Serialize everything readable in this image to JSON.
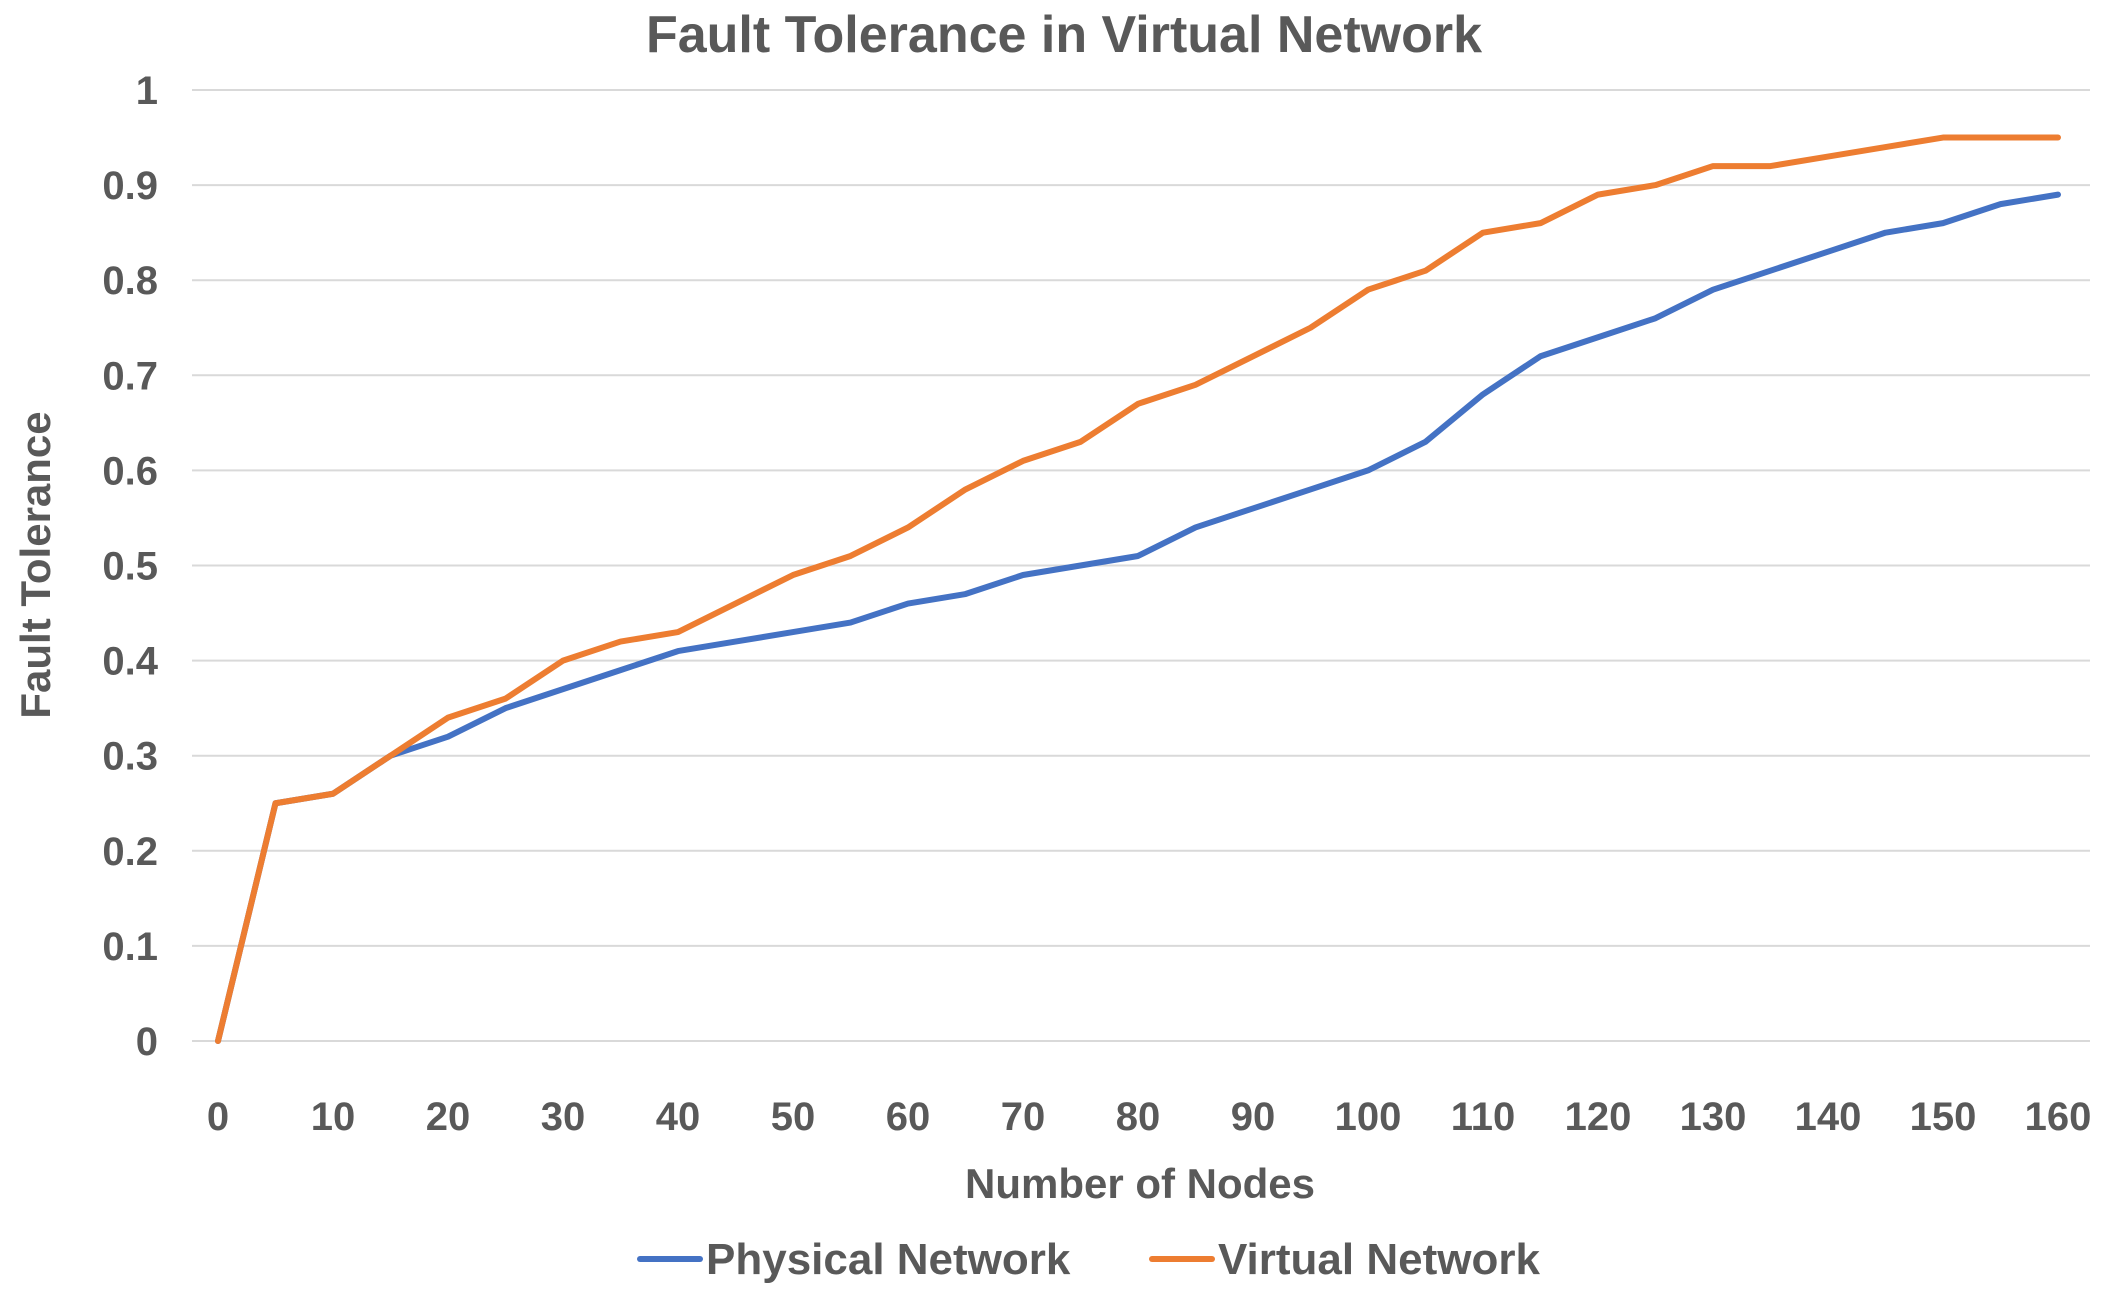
{
  "chart_data": {
    "type": "line",
    "title": "Fault Tolerance in Virtual Network",
    "xlabel": "Number of Nodes",
    "ylabel": "Fault Tolerance",
    "x": [
      0,
      5,
      10,
      15,
      20,
      25,
      30,
      35,
      40,
      45,
      50,
      55,
      60,
      65,
      70,
      75,
      80,
      85,
      90,
      95,
      100,
      105,
      110,
      115,
      120,
      125,
      130,
      135,
      140,
      145,
      150,
      155,
      160
    ],
    "xticks": [
      "0",
      "10",
      "20",
      "30",
      "40",
      "50",
      "60",
      "70",
      "80",
      "90",
      "100",
      "110",
      "120",
      "130",
      "140",
      "150",
      "160"
    ],
    "yticks": [
      "0",
      "0.1",
      "0.2",
      "0.3",
      "0.4",
      "0.5",
      "0.6",
      "0.7",
      "0.8",
      "0.9",
      "1"
    ],
    "xlim": [
      0,
      160
    ],
    "ylim": [
      0,
      1
    ],
    "grid": "horizontal",
    "legend_position": "bottom",
    "series": [
      {
        "name": "Physical Network",
        "color": "#4472c4",
        "values": [
          0,
          0.25,
          0.26,
          0.3,
          0.32,
          0.35,
          0.37,
          0.39,
          0.41,
          0.42,
          0.43,
          0.44,
          0.46,
          0.47,
          0.49,
          0.5,
          0.51,
          0.54,
          0.56,
          0.58,
          0.6,
          0.63,
          0.68,
          0.72,
          0.74,
          0.76,
          0.79,
          0.81,
          0.83,
          0.85,
          0.86,
          0.88,
          0.89
        ]
      },
      {
        "name": "Virtual Network",
        "color": "#ed7d31",
        "values": [
          0,
          0.25,
          0.26,
          0.3,
          0.34,
          0.36,
          0.4,
          0.42,
          0.43,
          0.46,
          0.49,
          0.51,
          0.54,
          0.58,
          0.61,
          0.63,
          0.67,
          0.69,
          0.72,
          0.75,
          0.79,
          0.81,
          0.85,
          0.86,
          0.89,
          0.9,
          0.92,
          0.92,
          0.93,
          0.94,
          0.95,
          0.95,
          0.95
        ]
      }
    ]
  }
}
